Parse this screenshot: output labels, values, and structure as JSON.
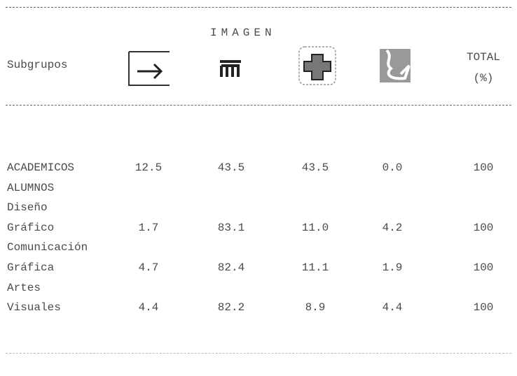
{
  "table": {
    "group_header": "IMAGEN",
    "label_header": "Subgrupos",
    "total_header": [
      "TOTAL",
      "(%)"
    ],
    "rows": [
      {
        "label": "ACADEMICOS",
        "values": [
          "12.5",
          "43.5",
          "43.5",
          "0.0",
          "100"
        ]
      },
      {
        "label": "ALUMNOS"
      },
      {
        "label": "Diseño"
      },
      {
        "label": "Gráfico",
        "values": [
          "1.7",
          "83.1",
          "11.0",
          "4.2",
          "100"
        ]
      },
      {
        "label": "Comunicación"
      },
      {
        "label": "Gráfica",
        "values": [
          "4.7",
          "82.4",
          "11.1",
          "1.9",
          "100"
        ]
      },
      {
        "label": "Artes"
      },
      {
        "label": "Visuales",
        "values": [
          "4.4",
          "82.2",
          "8.9",
          "4.4",
          "100"
        ]
      }
    ]
  }
}
